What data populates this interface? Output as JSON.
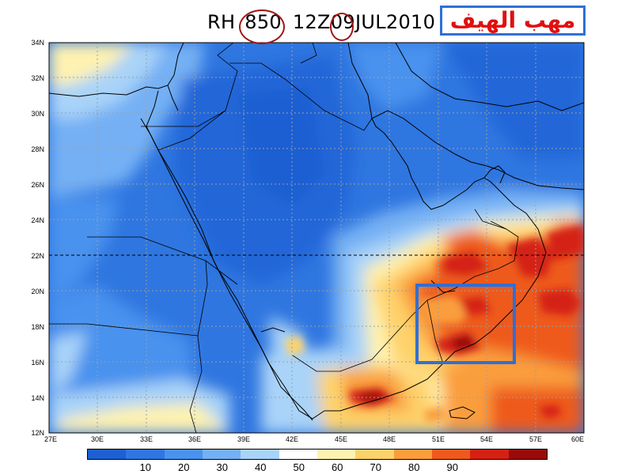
{
  "title": {
    "variable": "RH",
    "level": "850",
    "time_prefix": "12Z",
    "day": "09",
    "month_year": "JUL2010"
  },
  "badge": {
    "text": "مهب الهيف"
  },
  "map": {
    "lon_range": [
      27,
      60
    ],
    "lat_range": [
      12,
      34
    ],
    "lat_ticks": [
      "34N",
      "32N",
      "30N",
      "28N",
      "26N",
      "24N",
      "22N",
      "20N",
      "18N",
      "16N",
      "14N",
      "12N"
    ],
    "lon_ticks": [
      "27E",
      "30E",
      "33E",
      "36E",
      "39E",
      "42E",
      "45E",
      "48E",
      "51E",
      "54E",
      "57E",
      "60E"
    ],
    "highlight_box": {
      "lon": [
        51,
        57
      ],
      "lat": [
        16,
        20.3
      ],
      "color": "#2f6fd6"
    }
  },
  "colorbar": {
    "colors": [
      "#1e5fd2",
      "#2f76e0",
      "#4a92ee",
      "#74b0f4",
      "#a9d3f8",
      "#ffffff",
      "#fff2b0",
      "#fed26a",
      "#fa9e3c",
      "#ee5a1d",
      "#d42114",
      "#990a0a"
    ],
    "labels": [
      "10",
      "20",
      "30",
      "40",
      "50",
      "60",
      "70",
      "80",
      "90"
    ]
  },
  "colors": {
    "title_circle": "#a01515",
    "badge_border": "#2f6fd6",
    "badge_text": "#e01010"
  }
}
